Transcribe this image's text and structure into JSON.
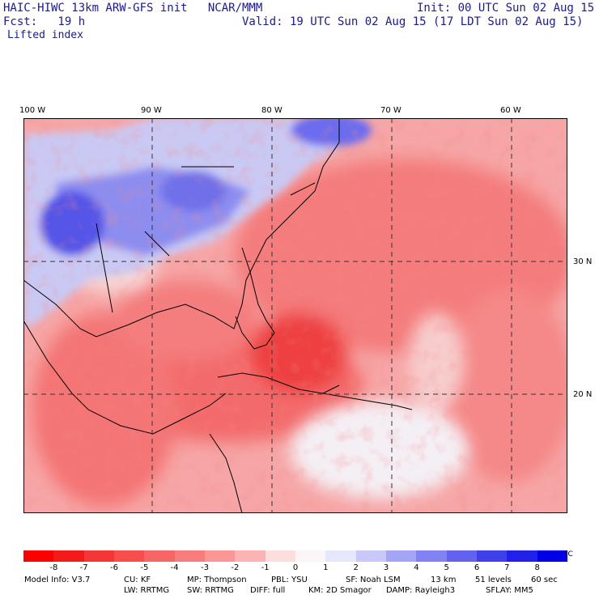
{
  "header": {
    "model_title": "HAIC-HIWC 13km ARW-GFS init   NCAR/MMM",
    "init": "Init: 00 UTC Sun 02 Aug 15",
    "fcst": "Fcst:   19 h",
    "valid": "Valid: 19 UTC Sun 02 Aug 15 (17 LDT Sun 02 Aug 15)",
    "field": "Lifted index"
  },
  "map": {
    "lon_labels": [
      "100 W",
      "90 W",
      "80 W",
      "70 W",
      "60 W"
    ],
    "lat_labels": [
      "30 N",
      "20 N"
    ]
  },
  "colorbar": {
    "labels": [
      "-8",
      "-7",
      "-6",
      "-5",
      "-4",
      "-3",
      "-2",
      "-1",
      "0",
      "1",
      "2",
      "3",
      "4",
      "5",
      "6",
      "7",
      "8"
    ],
    "unit": "°C",
    "colors": [
      "#ff0000",
      "#f31a1a",
      "#f53636",
      "#f74d4d",
      "#f76565",
      "#f77d7d",
      "#fa9696",
      "#fcb3b3",
      "#fcdede",
      "#fcf5f5",
      "#e6e6fc",
      "#c8c8fa",
      "#a5a5f5",
      "#8282f2",
      "#6262ee",
      "#4040ea",
      "#2020e8",
      "#0000e6"
    ]
  },
  "model_info": {
    "line1": [
      "Model Info: V3.7",
      "CU: KF",
      "MP: Thompson",
      "PBL: YSU",
      "SF: Noah LSM",
      "13 km",
      "51 levels",
      "60 sec"
    ],
    "line2": [
      "LW: RRTMG",
      "SW: RRTMG",
      "DIFF: full",
      "KM: 2D Smagor",
      "DAMP: Rayleigh3",
      "SFLAY: MM5"
    ]
  }
}
